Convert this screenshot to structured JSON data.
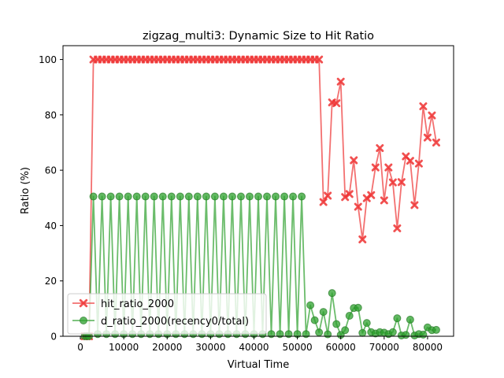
{
  "colors": {
    "hit": "#ee3333",
    "d": "#2ca02c",
    "axis": "#000000"
  },
  "chart_data": {
    "type": "line",
    "title": "zigzag_multi3: Dynamic Size to Hit Ratio",
    "xlabel": "Virtual Time",
    "ylabel": "Ratio (%)",
    "xlim": [
      -4000,
      86000
    ],
    "ylim": [
      0,
      105
    ],
    "xticks": [
      0,
      10000,
      20000,
      30000,
      40000,
      50000,
      60000,
      70000,
      80000
    ],
    "yticks": [
      0,
      20,
      40,
      60,
      80,
      100
    ],
    "xtick_labels": [
      "0",
      "10000",
      "20000",
      "30000",
      "40000",
      "50000",
      "60000",
      "70000",
      "80000"
    ],
    "ytick_labels": [
      "0",
      "20",
      "40",
      "60",
      "80",
      "100"
    ],
    "grid": false,
    "legend_position": "lower-left",
    "series": [
      {
        "name": "hit_ratio_2000",
        "marker": "x",
        "x": [
          1000,
          1500,
          2000,
          3000,
          4000,
          5000,
          6000,
          7000,
          8000,
          9000,
          10000,
          11000,
          12000,
          13000,
          14000,
          15000,
          16000,
          17000,
          18000,
          19000,
          20000,
          21000,
          22000,
          23000,
          24000,
          25000,
          26000,
          27000,
          28000,
          29000,
          30000,
          31000,
          32000,
          33000,
          34000,
          35000,
          36000,
          37000,
          38000,
          39000,
          40000,
          41000,
          42000,
          43000,
          44000,
          45000,
          46000,
          47000,
          48000,
          49000,
          50000,
          51000,
          52000,
          53000,
          54000,
          55000,
          56000,
          57000,
          58000,
          59000,
          60000,
          61000,
          62000,
          63000,
          64000,
          65000,
          66000,
          67000,
          68000,
          69000,
          70000,
          71000,
          72000,
          73000,
          74000,
          75000,
          76000,
          77000,
          78000,
          79000,
          80000,
          81000,
          82000
        ],
        "y": [
          0,
          0,
          0,
          100,
          100,
          100,
          100,
          100,
          100,
          100,
          100,
          100,
          100,
          100,
          100,
          100,
          100,
          100,
          100,
          100,
          100,
          100,
          100,
          100,
          100,
          100,
          100,
          100,
          100,
          100,
          100,
          100,
          100,
          100,
          100,
          100,
          100,
          100,
          100,
          100,
          100,
          100,
          100,
          100,
          100,
          100,
          100,
          100,
          100,
          100,
          100,
          100,
          100,
          100,
          100,
          100,
          48.5,
          50.8,
          84.5,
          84.2,
          92.0,
          50.3,
          51.4,
          63.6,
          46.8,
          35.0,
          49.9,
          51.0,
          61.0,
          68.0,
          49.1,
          61.0,
          55.6,
          39.0,
          55.7,
          65.0,
          63.4,
          47.4,
          62.4,
          83.1,
          71.8,
          79.8,
          70.0
        ]
      },
      {
        "name": "d_ratio_2000(recency0/total)",
        "marker": "o",
        "x": [
          1000,
          1500,
          2000,
          3000,
          4000,
          5000,
          6000,
          7000,
          8000,
          9000,
          10000,
          11000,
          12000,
          13000,
          14000,
          15000,
          16000,
          17000,
          18000,
          19000,
          20000,
          21000,
          22000,
          23000,
          24000,
          25000,
          26000,
          27000,
          28000,
          29000,
          30000,
          31000,
          32000,
          33000,
          34000,
          35000,
          36000,
          37000,
          38000,
          39000,
          40000,
          41000,
          42000,
          43000,
          44000,
          45000,
          46000,
          47000,
          48000,
          49000,
          50000,
          51000,
          52000,
          53000,
          54000,
          55000,
          56000,
          57000,
          58000,
          59000,
          60000,
          61000,
          62000,
          63000,
          64000,
          65000,
          66000,
          67000,
          68000,
          69000,
          70000,
          71000,
          72000,
          73000,
          74000,
          75000,
          76000,
          77000,
          78000,
          79000,
          80000,
          81000,
          82000
        ],
        "y": [
          0,
          0,
          0,
          50.5,
          0.8,
          50.5,
          0.8,
          50.5,
          0.8,
          50.5,
          0.8,
          50.5,
          0.8,
          50.5,
          0.8,
          50.5,
          0.8,
          50.5,
          0.8,
          50.5,
          0.8,
          50.5,
          0.8,
          50.5,
          0.8,
          50.5,
          0.8,
          50.5,
          0.8,
          50.5,
          0.8,
          50.5,
          0.8,
          50.5,
          0.8,
          50.5,
          0.8,
          50.5,
          0.8,
          50.5,
          0.8,
          50.5,
          0.8,
          50.5,
          0.8,
          50.5,
          0.8,
          50.5,
          0.8,
          50.5,
          0.8,
          50.5,
          0.8,
          11.2,
          5.8,
          1.4,
          8.8,
          0.7,
          15.6,
          4.4,
          0.5,
          2.2,
          7.4,
          10.2,
          10.3,
          1.2,
          4.8,
          1.5,
          1.0,
          1.5,
          1.3,
          0.8,
          1.5,
          6.5,
          0.3,
          0.5,
          6.0,
          0.3,
          0.8,
          0.6,
          3.2,
          2.2,
          2.3
        ]
      }
    ]
  }
}
